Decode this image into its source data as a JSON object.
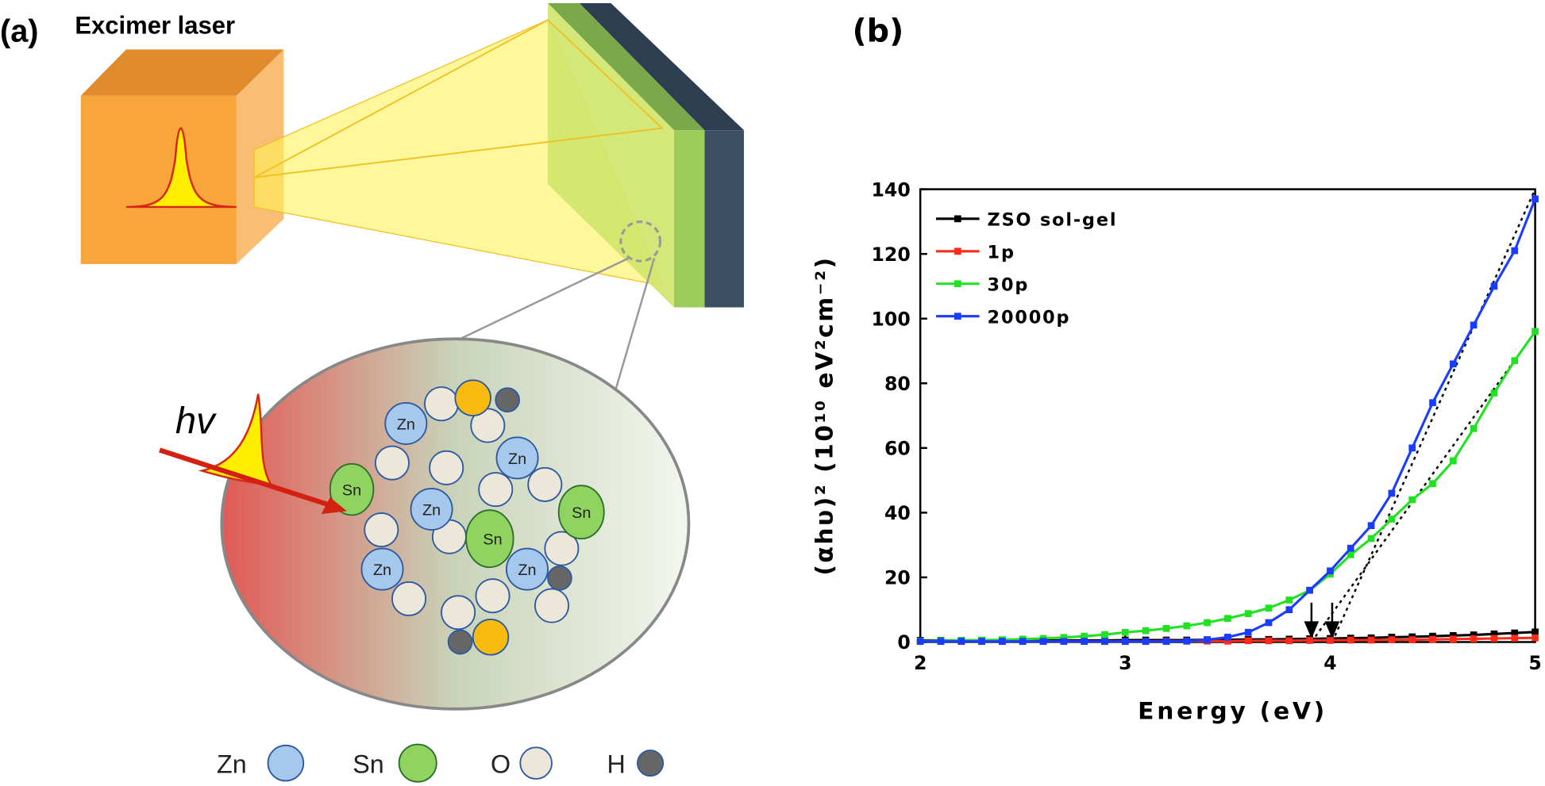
{
  "panel_a": {
    "label": "(a)",
    "title": "Excimer laser",
    "photon": "hv",
    "atom_labels": [
      "Zn",
      "Zn",
      "Zn",
      "Zn",
      "Zn",
      "Sn",
      "Sn",
      "Sn"
    ],
    "legend": [
      "Zn",
      "Sn",
      "O",
      "H"
    ]
  },
  "chart_data": {
    "type": "line",
    "panel_label": "(b)",
    "xlabel": "Energy (eV)",
    "ylabel": "(αhυ)² (10¹⁰ eV²cm⁻²)",
    "x": [
      2.0,
      2.1,
      2.2,
      2.3,
      2.4,
      2.5,
      2.6,
      2.7,
      2.8,
      2.9,
      3.0,
      3.1,
      3.2,
      3.3,
      3.4,
      3.5,
      3.6,
      3.7,
      3.8,
      3.9,
      4.0,
      4.1,
      4.2,
      4.3,
      4.4,
      4.5,
      4.6,
      4.7,
      4.8,
      4.9,
      5.0
    ],
    "xlim": [
      2,
      5
    ],
    "xticks": [
      2,
      3,
      4,
      5
    ],
    "ylim": [
      0,
      140
    ],
    "yticks": [
      0,
      20,
      40,
      60,
      80,
      100,
      120,
      140
    ],
    "legend_position": "upper left",
    "series": [
      {
        "name": "ZSO sol-gel",
        "color": "#000000",
        "values": [
          0.5,
          0.5,
          0.5,
          0.5,
          0.5,
          0.5,
          0.5,
          0.5,
          0.5,
          0.5,
          0.6,
          0.6,
          0.6,
          0.6,
          0.7,
          0.7,
          0.8,
          0.8,
          0.9,
          1.0,
          1.1,
          1.2,
          1.3,
          1.5,
          1.6,
          1.8,
          2.0,
          2.2,
          2.5,
          2.8,
          3.1
        ]
      },
      {
        "name": "1p",
        "color": "#ff2a1a",
        "values": [
          0.2,
          0.2,
          0.2,
          0.2,
          0.2,
          0.2,
          0.2,
          0.2,
          0.2,
          0.2,
          0.2,
          0.2,
          0.3,
          0.3,
          0.3,
          0.3,
          0.4,
          0.4,
          0.4,
          0.5,
          0.5,
          0.6,
          0.6,
          0.7,
          0.7,
          0.8,
          0.9,
          1.0,
          1.1,
          1.2,
          1.3
        ]
      },
      {
        "name": "30p",
        "color": "#22e022",
        "values": [
          0.3,
          0.4,
          0.5,
          0.6,
          0.7,
          0.9,
          1.1,
          1.4,
          1.8,
          2.3,
          3.0,
          3.5,
          4.2,
          5.0,
          6.0,
          7.3,
          8.8,
          10.5,
          13,
          16,
          21,
          27,
          32,
          38,
          44,
          49,
          56,
          66,
          77,
          87,
          96
        ]
      },
      {
        "name": "20000p",
        "color": "#1a3cff",
        "values": [
          0.2,
          0.2,
          0.2,
          0.2,
          0.2,
          0.2,
          0.2,
          0.2,
          0.2,
          0.2,
          0.2,
          0.2,
          0.2,
          0.3,
          0.7,
          1.5,
          3,
          6,
          10,
          16,
          22,
          29,
          36,
          46,
          60,
          74,
          86,
          98,
          110,
          121,
          137
        ]
      }
    ]
  }
}
